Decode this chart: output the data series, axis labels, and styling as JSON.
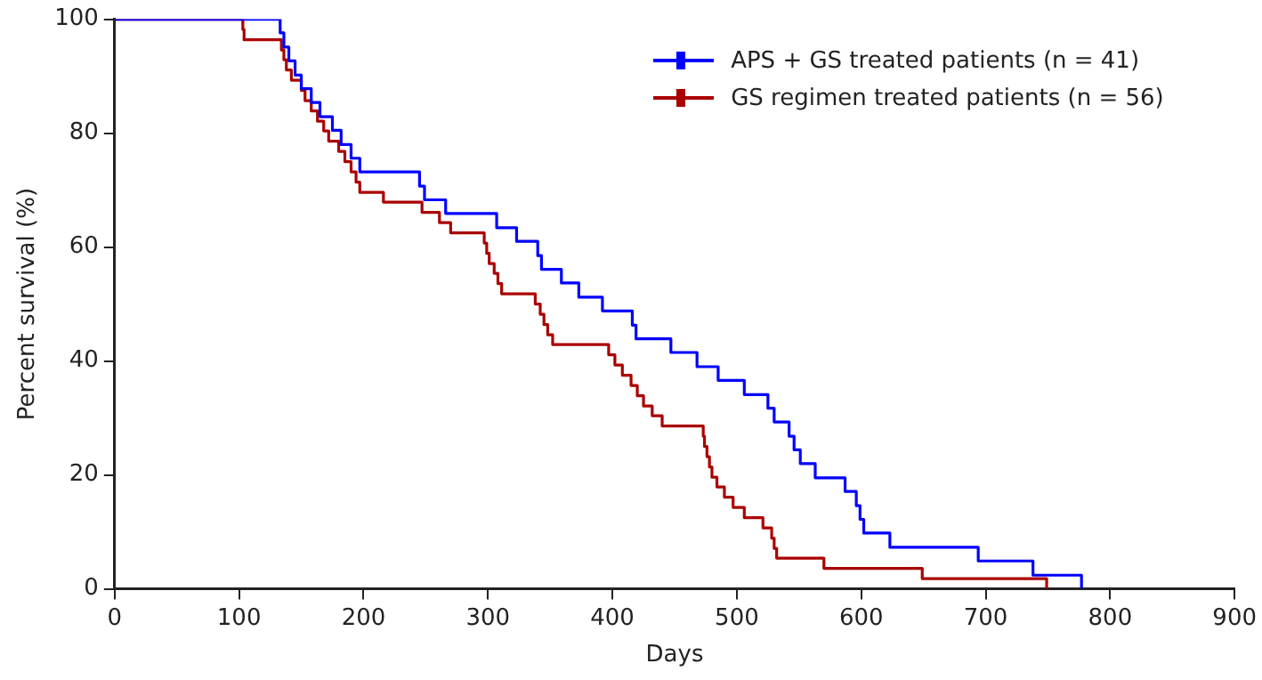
{
  "chart_data": {
    "type": "step",
    "xlabel": "Days",
    "ylabel": "Percent survival (%)",
    "xlim": [
      0,
      900
    ],
    "xticks": [
      0,
      100,
      200,
      300,
      400,
      500,
      600,
      700,
      800,
      900
    ],
    "ylim": [
      0,
      100
    ],
    "yticks": [
      0,
      20,
      40,
      60,
      80,
      100
    ],
    "grid": false,
    "legend": "top right",
    "marker": "none",
    "line_style": "solid",
    "series": [
      {
        "name": "APS + GS treated patients (n = 41)",
        "color": "#0000ff",
        "x": [
          0,
          133,
          136,
          140,
          145,
          150,
          158,
          165,
          175,
          182,
          190,
          197,
          245,
          249,
          266,
          307,
          323,
          340,
          343,
          359,
          373,
          392,
          416,
          419,
          447,
          468,
          485,
          506,
          525,
          530,
          542,
          546,
          551,
          563,
          587,
          596,
          599,
          602,
          623,
          694,
          738,
          777
        ],
        "values": [
          100,
          97.6,
          95.1,
          92.7,
          90.2,
          87.8,
          85.4,
          82.9,
          80.5,
          78.0,
          75.6,
          73.2,
          70.7,
          68.3,
          65.9,
          63.4,
          61.0,
          58.5,
          56.1,
          53.7,
          51.2,
          48.8,
          46.3,
          43.9,
          41.5,
          39.0,
          36.6,
          34.1,
          31.7,
          29.3,
          26.8,
          24.4,
          22.0,
          19.5,
          17.1,
          14.6,
          12.2,
          9.8,
          7.3,
          4.9,
          2.4,
          0
        ]
      },
      {
        "name": "GS regimen treated patients (n = 56)",
        "color": "#aa0000",
        "x": [
          0,
          103,
          104,
          134,
          136,
          138,
          142,
          150,
          153,
          158,
          163,
          168,
          172,
          180,
          185,
          190,
          194,
          197,
          216,
          247,
          261,
          270,
          297,
          299,
          301,
          305,
          308,
          311,
          338,
          342,
          345,
          348,
          352,
          397,
          402,
          408,
          415,
          420,
          425,
          432,
          440,
          473,
          474,
          476,
          478,
          480,
          484,
          490,
          497,
          506,
          521,
          528,
          530,
          532,
          570,
          649,
          749
        ],
        "values": [
          100,
          98.2,
          96.4,
          94.6,
          92.9,
          91.1,
          89.3,
          87.5,
          85.7,
          83.9,
          82.1,
          80.4,
          78.6,
          76.8,
          75.0,
          73.2,
          71.4,
          69.6,
          67.9,
          66.1,
          64.3,
          62.5,
          60.7,
          58.9,
          57.1,
          55.4,
          53.6,
          51.8,
          50.0,
          48.2,
          46.4,
          44.6,
          42.9,
          41.1,
          39.3,
          37.5,
          35.7,
          33.9,
          32.1,
          30.4,
          28.6,
          26.8,
          25.0,
          23.2,
          21.4,
          19.6,
          17.9,
          16.1,
          14.3,
          12.5,
          10.7,
          8.9,
          7.1,
          5.4,
          3.6,
          1.8,
          0
        ]
      }
    ]
  }
}
